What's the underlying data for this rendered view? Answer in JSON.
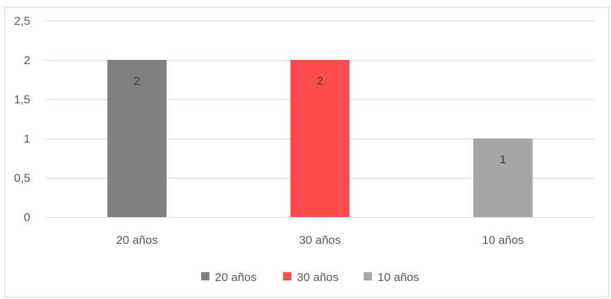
{
  "chart_data": {
    "type": "bar",
    "categories": [
      "20 años",
      "30 años",
      "10 años"
    ],
    "series": [
      {
        "name": "20 años",
        "category": "20 años",
        "value": 2,
        "color": "#808080"
      },
      {
        "name": "30 años",
        "category": "30 años",
        "value": 2,
        "color": "#ff4b4b"
      },
      {
        "name": "10 años",
        "category": "10 años",
        "value": 1,
        "color": "#a6a6a6"
      }
    ],
    "values": [
      2,
      2,
      1
    ],
    "data_labels": [
      "2",
      "2",
      "1"
    ],
    "title": "",
    "xlabel": "",
    "ylabel": "",
    "ylim": [
      0,
      2.5
    ],
    "yticks": [
      0,
      0.5,
      1,
      1.5,
      2,
      2.5
    ],
    "ytick_labels": [
      "0",
      "0,5",
      "1",
      "1,5",
      "2",
      "2,5"
    ],
    "grid": true,
    "gridline_color": "#d9d9d9",
    "legend": {
      "position": "bottom",
      "entries": [
        "20 años",
        "30 años",
        "10 años"
      ]
    }
  }
}
